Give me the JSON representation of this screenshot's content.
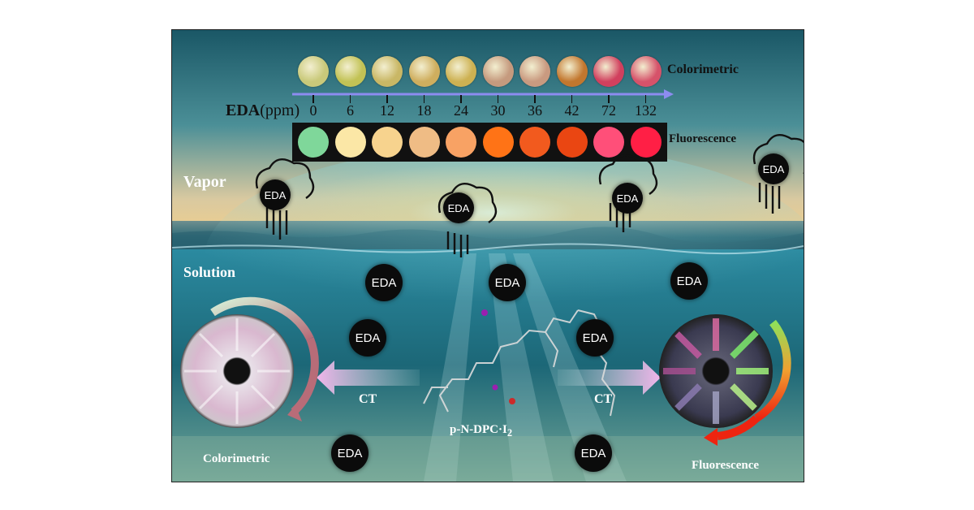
{
  "colorimetric_top_label": "Colorimetric",
  "fluorescence_top_label": "Fluorescence",
  "eda_axis": {
    "bold": "EDA",
    "unit": "(ppm)"
  },
  "ppm_values": [
    "0",
    "6",
    "12",
    "18",
    "24",
    "30",
    "36",
    "42",
    "72",
    "132"
  ],
  "colorimetric_swatches": [
    "#c9c97a",
    "#c2c255",
    "#c9b765",
    "#cfae5e",
    "#cdb152",
    "#c59a7e",
    "#c99a80",
    "#c2772e",
    "#d1405e",
    "#d6526a"
  ],
  "fluorescence_swatches": [
    "#7fd79a",
    "#fbe7a6",
    "#f7d38e",
    "#efbc85",
    "#f8a264",
    "#ff7316",
    "#f25a1e",
    "#ea4612",
    "#ff4f79",
    "#ff1f45"
  ],
  "vapor_label": "Vapor",
  "solution_label": "Solution",
  "eda_text": "EDA",
  "ct_left": "CT",
  "ct_right": "CT",
  "compound": {
    "main": "p-N-DPC·I",
    "sub": "2"
  },
  "bottom_left_label": "Colorimetric",
  "bottom_right_label": "Fluorescence",
  "colors": {
    "sea_top": "#2a8296",
    "sea_deep": "#0e3f4d",
    "sky_glow": "#f7d28a",
    "arrow": "#f1b6e6",
    "ring_gradient_end": "#ee2410"
  }
}
